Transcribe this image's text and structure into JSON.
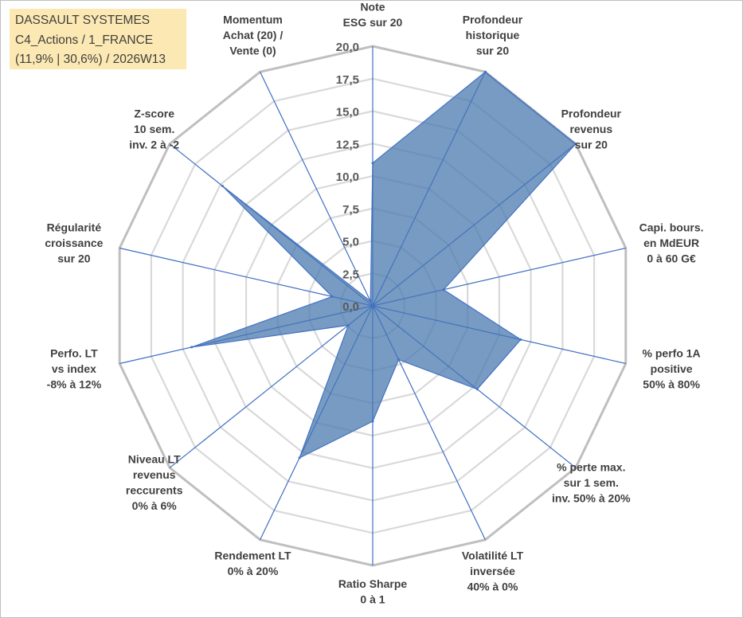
{
  "chart_data": {
    "type": "radar",
    "title_lines": [
      "DASSAULT SYSTEMES",
      "C4_Actions / 1_FRANCE",
      "(11,9% | 30,6%) / 2026W13"
    ],
    "rlim": [
      0,
      20
    ],
    "ticks": [
      0,
      2.5,
      5,
      7.5,
      10,
      12.5,
      15,
      17.5,
      20
    ],
    "tick_labels": [
      "0,0",
      "2,5",
      "5,0",
      "7,5",
      "10,0",
      "12,5",
      "15,0",
      "17,5",
      "20,0"
    ],
    "axes": [
      {
        "label": [
          "Note",
          "ESG sur 20"
        ],
        "value": 11
      },
      {
        "label": [
          "Profondeur",
          "historique",
          "sur 20"
        ],
        "value": 20
      },
      {
        "label": [
          "Profondeur",
          "revenus",
          "sur 20"
        ],
        "value": 20
      },
      {
        "label": [
          "Capi. bours.",
          "en MdEUR",
          "0 à 60 G€"
        ],
        "value": 5.6
      },
      {
        "label": [
          "% perfo 1A",
          "positive",
          "50% à 80%"
        ],
        "value": 11.7
      },
      {
        "label": [
          "% perte max.",
          "sur 1 sem.",
          "inv. 50% à 20%"
        ],
        "value": 10.3
      },
      {
        "label": [
          "Volatilité LT",
          "inversée",
          "40% à 0%"
        ],
        "value": 4.6
      },
      {
        "label": [
          "Ratio Sharpe",
          "0 à 1"
        ],
        "value": 8.9
      },
      {
        "label": [
          "Rendement LT",
          "0% à 20%"
        ],
        "value": 13
      },
      {
        "label": [
          "Niveau LT",
          "revenus",
          "reccurents",
          "0% à 6%"
        ],
        "value": 2.4
      },
      {
        "label": [
          "Perfo. LT",
          "vs index",
          "-8% à 12%"
        ],
        "value": 14.3
      },
      {
        "label": [
          "Régularité",
          "croissance",
          "sur 20"
        ],
        "value": 3.2
      },
      {
        "label": [
          "Z-score",
          "10 sem.",
          "inv. 2 à -2"
        ],
        "value": 14.8
      },
      {
        "label": [
          "Momentum",
          "Achat (20) /",
          "Vente (0)"
        ],
        "value": 0.4
      }
    ],
    "colors": {
      "fill": "#4a79ad",
      "fill_opacity": 0.75,
      "spoke": "#4472c4",
      "grid": "#d9d9d9",
      "outer_grid": "#bfbfbf",
      "label": "#404040",
      "title_bg": "#fce8b2"
    }
  }
}
